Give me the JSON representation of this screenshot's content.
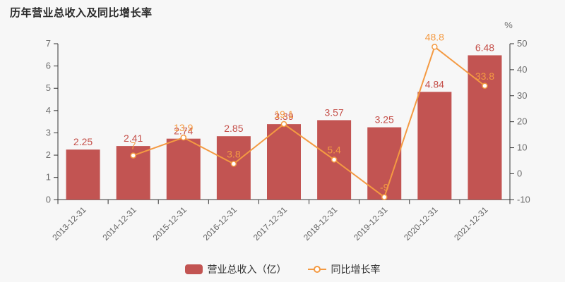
{
  "title": "历年营业总收入及同比增长率",
  "colors": {
    "background": "#f7f7f7",
    "bar": "#c25452",
    "bar_label": "#c5504a",
    "line": "#f49a42",
    "marker_fill": "#ffffff",
    "axis_line": "#333333",
    "tick_label": "#6e6e6e",
    "x_tick_label": "#666666",
    "title_text": "#2b2b2b",
    "legend_text": "#333333"
  },
  "right_axis_unit": "%",
  "legend": {
    "items": [
      {
        "label": "营业总收入（亿）",
        "marker": "bar-swatch"
      },
      {
        "label": "同比增长率",
        "marker": "line-marker"
      }
    ]
  },
  "chart_data": {
    "type": "bar+line",
    "categories": [
      "2013-12-31",
      "2014-12-31",
      "2015-12-31",
      "2016-12-31",
      "2017-12-31",
      "2018-12-31",
      "2019-12-31",
      "2020-12-31",
      "2021-12-31"
    ],
    "series": [
      {
        "name": "营业总收入（亿）",
        "type": "bar",
        "y_axis": "left",
        "values": [
          2.25,
          2.41,
          2.74,
          2.85,
          3.39,
          3.57,
          3.25,
          4.84,
          6.48
        ]
      },
      {
        "name": "同比增长率",
        "type": "line",
        "y_axis": "right",
        "values": [
          null,
          7,
          13.9,
          3.8,
          19.1,
          5.4,
          -9,
          48.8,
          33.8
        ]
      }
    ],
    "left_axis": {
      "min": 0,
      "max": 7,
      "step": 1
    },
    "right_axis": {
      "min": -10,
      "max": 50,
      "step": 10,
      "unit": "%"
    },
    "grid": false,
    "legend_position": "bottom",
    "x_label_rotation": 45
  }
}
